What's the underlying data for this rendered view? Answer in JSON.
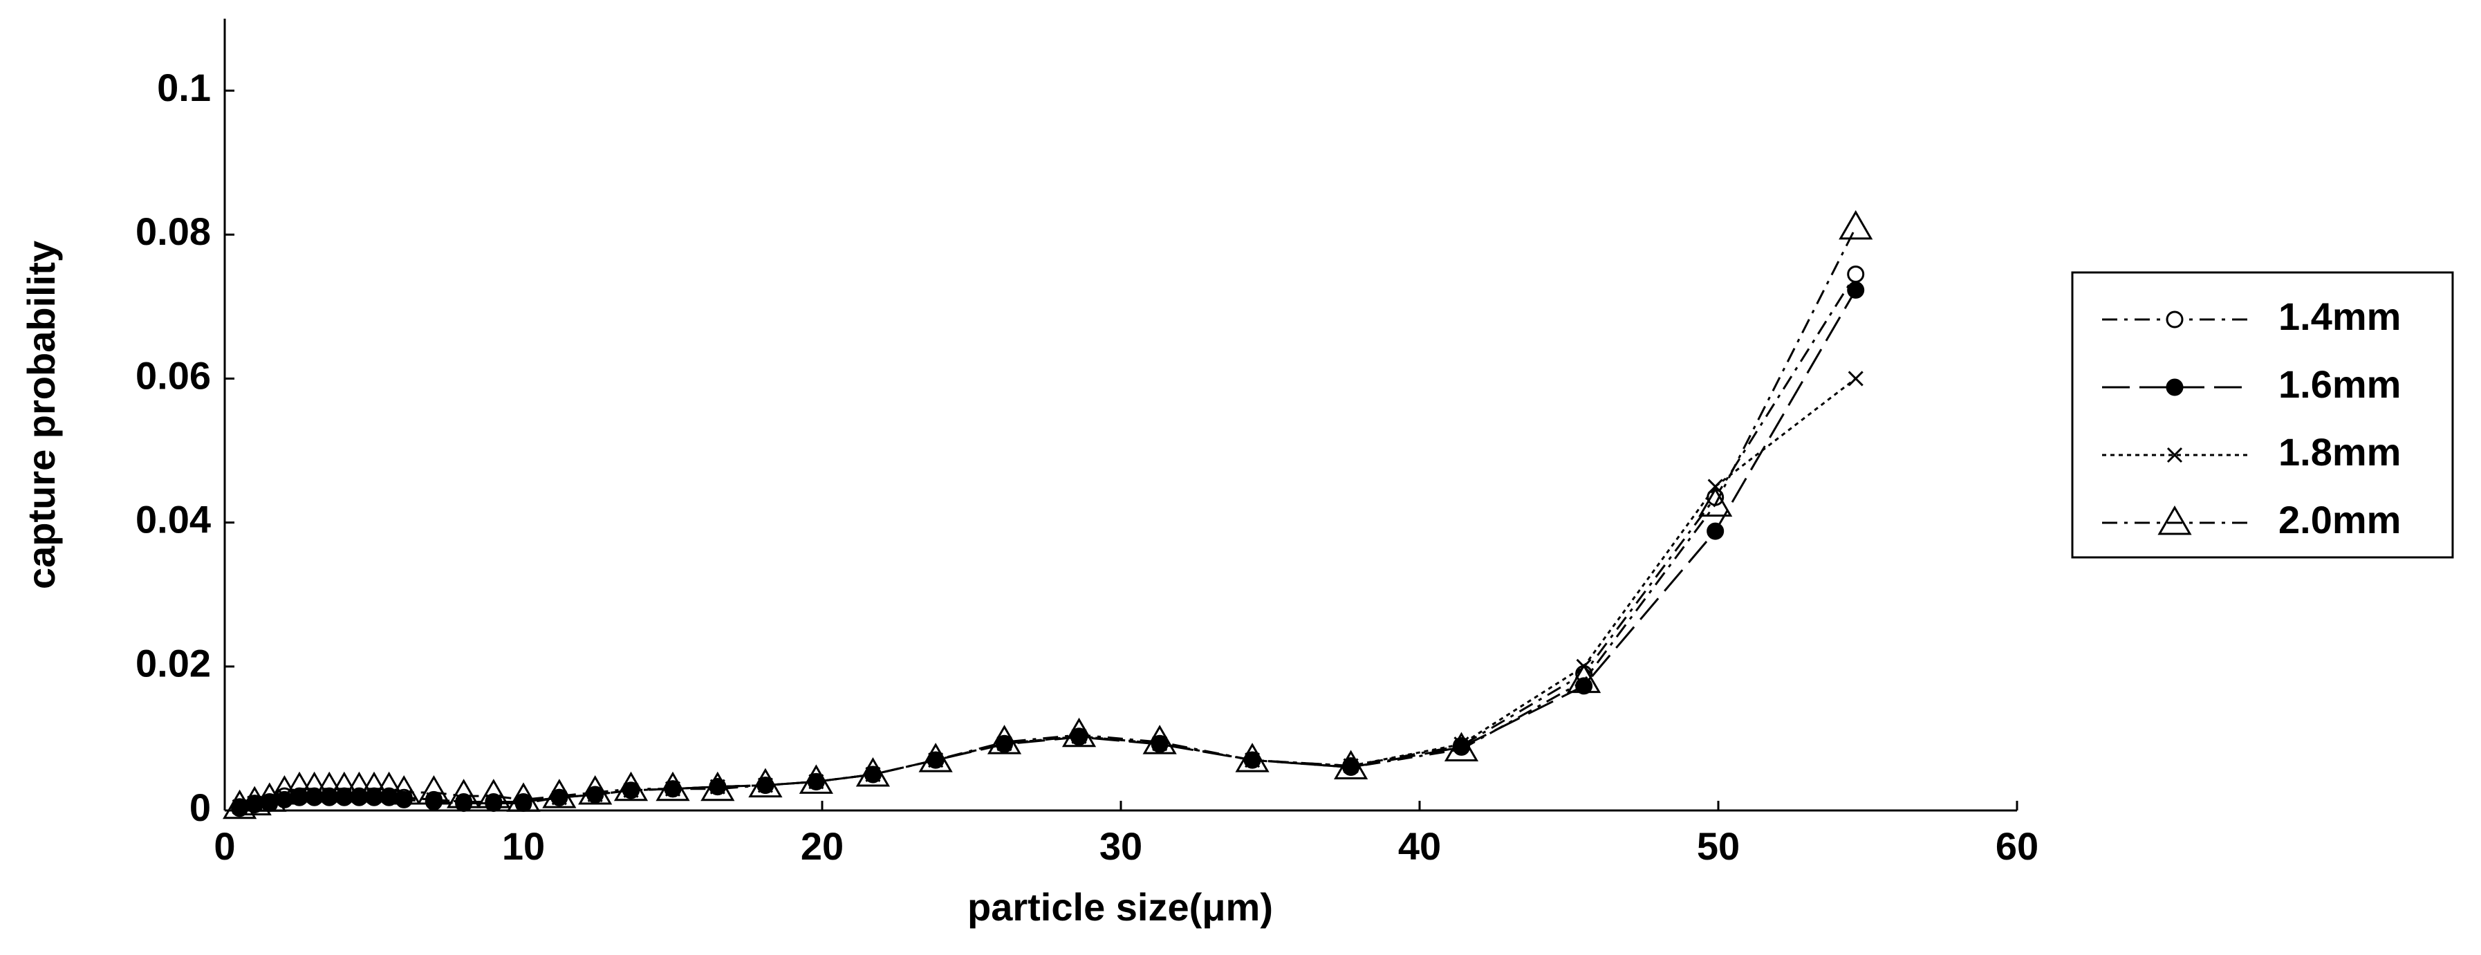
{
  "chart_data": {
    "type": "line",
    "x_label": "particle size(μm)",
    "y_label": "capture probability",
    "x": [
      0.5,
      1.0,
      1.5,
      2.0,
      2.5,
      3.0,
      3.5,
      4.0,
      4.5,
      5.0,
      5.5,
      6.0,
      7.0,
      8.0,
      9.0,
      10.0,
      11.2,
      12.4,
      13.6,
      15.0,
      16.5,
      18.1,
      19.8,
      21.7,
      23.8,
      26.1,
      28.6,
      31.3,
      34.4,
      37.7,
      41.4,
      45.5,
      49.9,
      54.6
    ],
    "series": [
      {
        "name": "1.4mm",
        "color": "#000000",
        "marker": "circle-open",
        "dash": "dash-dot",
        "values": [
          0.0005,
          0.001,
          0.0012,
          0.002,
          0.002,
          0.002,
          0.002,
          0.002,
          0.002,
          0.002,
          0.002,
          0.0018,
          0.0015,
          0.0012,
          0.0012,
          0.0012,
          0.0018,
          0.0022,
          0.0028,
          0.003,
          0.0033,
          0.0035,
          0.004,
          0.005,
          0.007,
          0.0093,
          0.0103,
          0.0093,
          0.007,
          0.0062,
          0.009,
          0.019,
          0.0435,
          0.0745
        ]
      },
      {
        "name": "1.6mm",
        "color": "#000000",
        "marker": "circle-filled",
        "dash": "long-dash",
        "values": [
          0.0003,
          0.0008,
          0.001,
          0.0015,
          0.0018,
          0.0018,
          0.0018,
          0.0018,
          0.0018,
          0.0018,
          0.0018,
          0.0015,
          0.0012,
          0.001,
          0.001,
          0.001,
          0.0018,
          0.0022,
          0.0028,
          0.003,
          0.0033,
          0.0035,
          0.004,
          0.005,
          0.007,
          0.0092,
          0.0102,
          0.0092,
          0.007,
          0.006,
          0.0088,
          0.0173,
          0.0388,
          0.0723
        ]
      },
      {
        "name": "1.8mm",
        "color": "#000000",
        "marker": "cross",
        "dash": "dotted",
        "values": [
          0.0005,
          0.001,
          0.0012,
          0.002,
          0.002,
          0.002,
          0.002,
          0.002,
          0.002,
          0.002,
          0.002,
          0.0018,
          0.0015,
          0.0012,
          0.0012,
          0.0012,
          0.0018,
          0.0022,
          0.0028,
          0.003,
          0.0033,
          0.0035,
          0.004,
          0.005,
          0.007,
          0.0093,
          0.0103,
          0.0093,
          0.007,
          0.0062,
          0.0092,
          0.02,
          0.045,
          0.06
        ]
      },
      {
        "name": "2.0mm",
        "color": "#000000",
        "marker": "triangle-open",
        "dash": "dash-dot",
        "values": [
          0.0005,
          0.001,
          0.0015,
          0.0025,
          0.003,
          0.003,
          0.003,
          0.003,
          0.003,
          0.003,
          0.003,
          0.0025,
          0.0025,
          0.002,
          0.002,
          0.0015,
          0.002,
          0.0025,
          0.003,
          0.003,
          0.003,
          0.0035,
          0.004,
          0.005,
          0.007,
          0.0095,
          0.0105,
          0.0095,
          0.007,
          0.006,
          0.0085,
          0.018,
          0.0425,
          0.081
        ]
      }
    ],
    "xlim": [
      0,
      60
    ],
    "xticks": [
      0,
      10,
      20,
      30,
      40,
      50,
      60
    ],
    "ylim": [
      0,
      0.11
    ],
    "yticks": [
      0,
      0.02,
      0.04,
      0.06,
      0.08,
      0.1
    ],
    "grid": false,
    "legend": "right"
  }
}
